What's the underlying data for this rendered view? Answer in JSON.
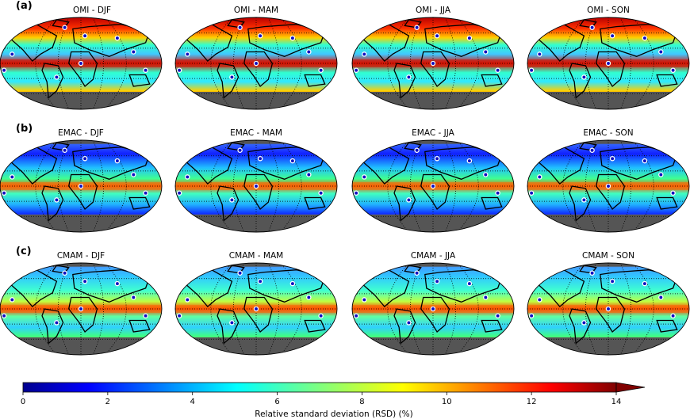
{
  "chart_data": {
    "type": "heatmap",
    "rows": [
      {
        "label": "(a)",
        "panels": [
          {
            "title": "OMI - DJF"
          },
          {
            "title": "OMI - MAM"
          },
          {
            "title": "OMI - JJA"
          },
          {
            "title": "OMI - SON"
          }
        ]
      },
      {
        "label": "(b)",
        "panels": [
          {
            "title": "EMAC - DJF"
          },
          {
            "title": "EMAC - MAM"
          },
          {
            "title": "EMAC - JJA"
          },
          {
            "title": "EMAC - SON"
          }
        ]
      },
      {
        "label": "(c)",
        "panels": [
          {
            "title": "CMAM - DJF"
          },
          {
            "title": "CMAM - MAM"
          },
          {
            "title": "CMAM - JJA"
          },
          {
            "title": "CMAM - SON"
          }
        ]
      }
    ],
    "colorbar": {
      "label": "Relative standard deviation (RSD) (%)",
      "ticks": [
        "0",
        "2",
        "4",
        "6",
        "8",
        "10",
        "12",
        "14"
      ],
      "range": [
        0,
        14
      ],
      "extend": "max",
      "colormap": "jet"
    },
    "colors": {
      "land_outline": "#000000",
      "missing_data": "#555555",
      "station_marker": "#ffffff"
    }
  }
}
